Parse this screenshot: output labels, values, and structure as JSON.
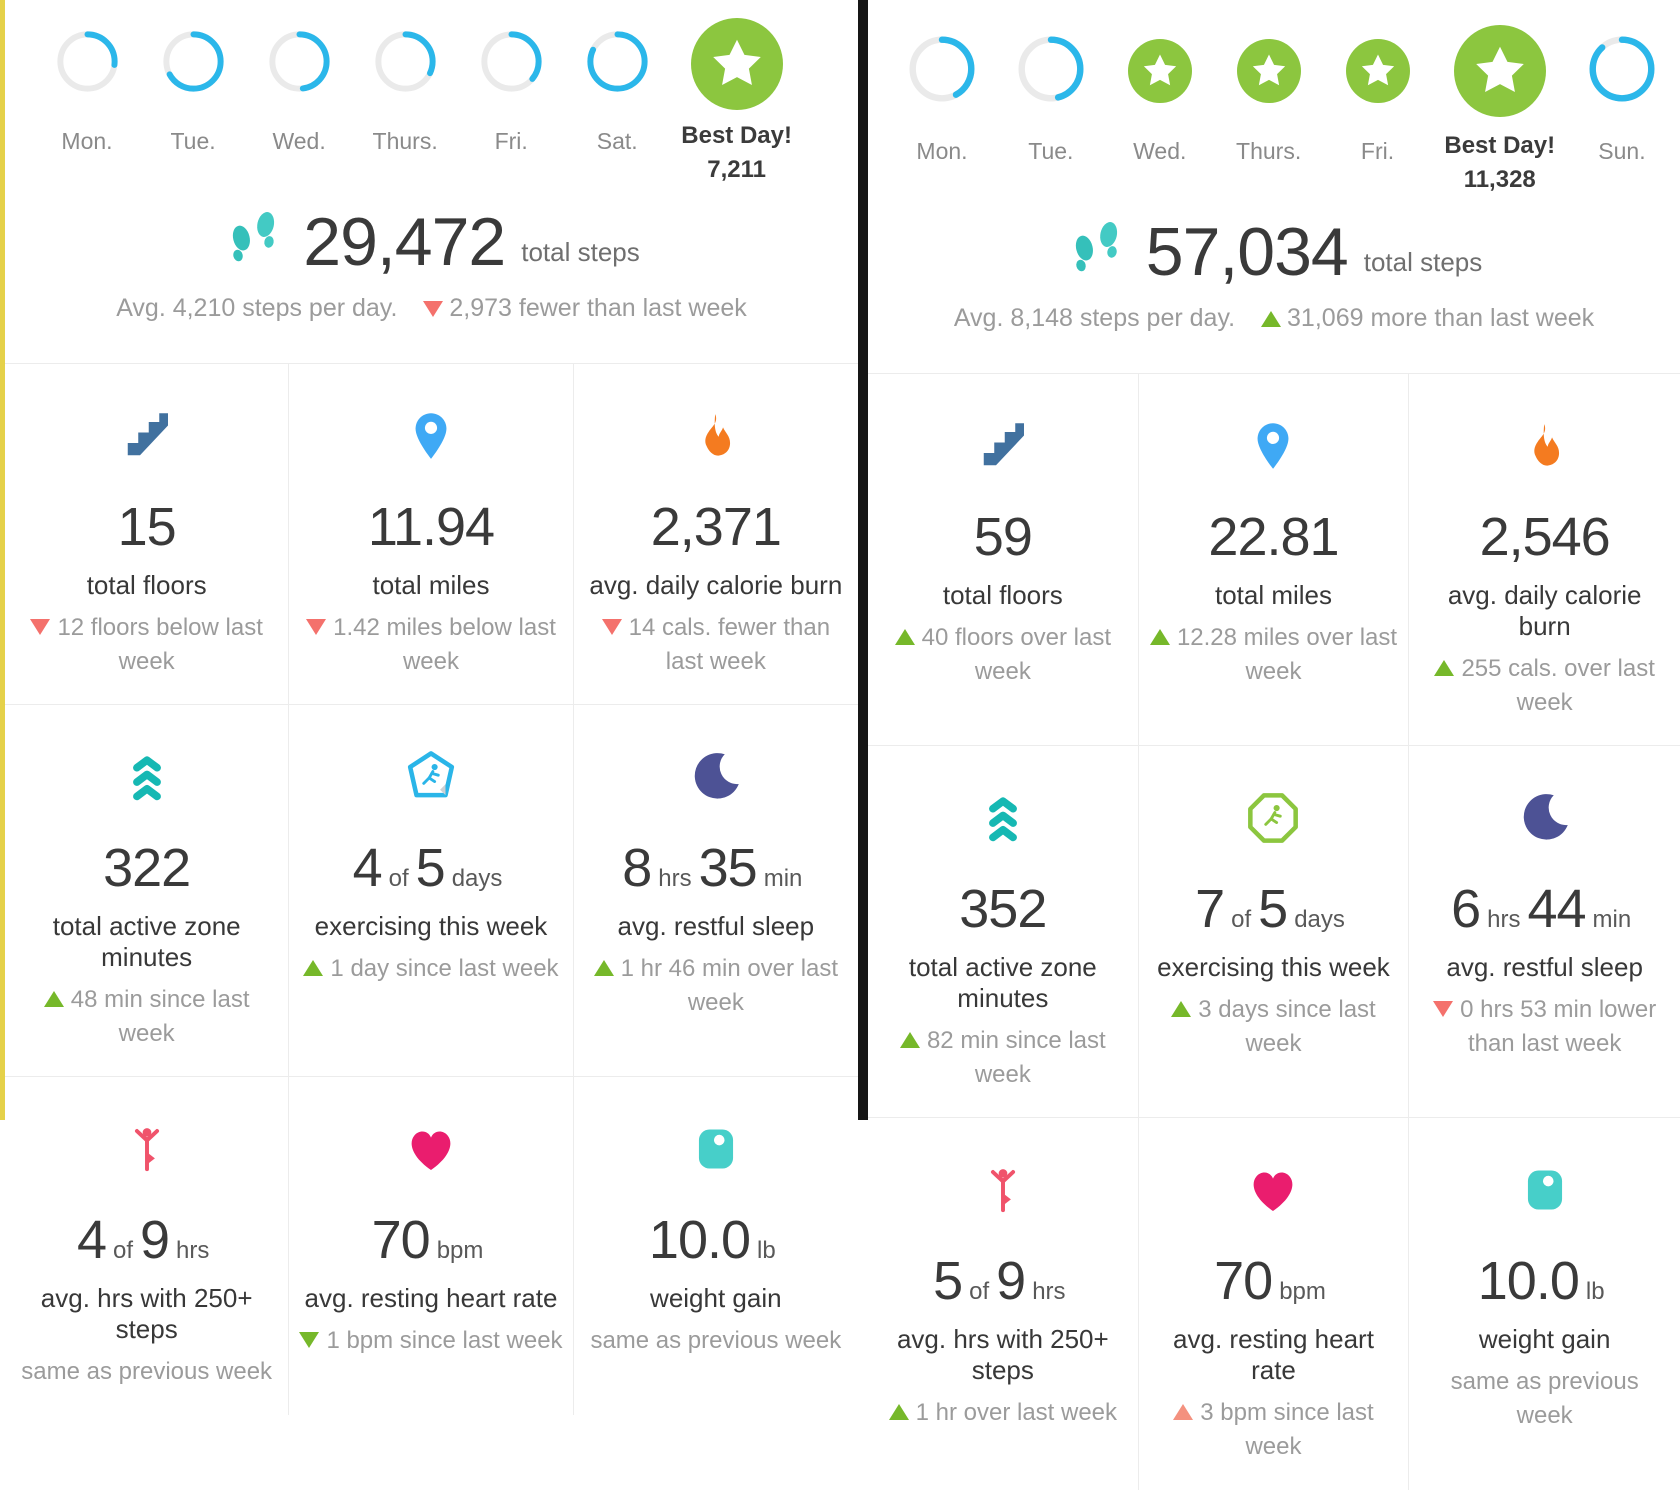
{
  "colors": {
    "green": "#76b82a",
    "red": "#f4716c",
    "salmon": "#f4917f",
    "ring_blue": "#2bb7ea",
    "star_green": "#8cc63f",
    "divider_black": "#161616",
    "edge_yellow": "#e5d149"
  },
  "left_panel": {
    "days": [
      {
        "label": "Mon.",
        "ring": 0.27,
        "size": "sm"
      },
      {
        "label": "Tue.",
        "ring": 0.67,
        "size": "sm"
      },
      {
        "label": "Wed.",
        "ring": 0.48,
        "size": "sm"
      },
      {
        "label": "Thurs.",
        "ring": 0.32,
        "size": "sm"
      },
      {
        "label": "Fri.",
        "ring": 0.36,
        "size": "sm"
      },
      {
        "label": "Sat.",
        "ring": 0.82,
        "size": "sm"
      },
      {
        "best_day": true,
        "star": "big",
        "title": "Best Day!",
        "value": "7,211"
      }
    ],
    "steps": {
      "total": "29,472",
      "unit": "total steps",
      "avg": "Avg. 4,210 steps per day.",
      "change": {
        "dir": "down",
        "color": "red",
        "text": "2,973 fewer than last week"
      }
    },
    "cards": [
      {
        "icon": "stairs-icon",
        "value": [
          {
            "t": "15"
          }
        ],
        "label": "total floors",
        "change": {
          "dir": "down",
          "color": "red",
          "text": "12 floors below last week"
        }
      },
      {
        "icon": "location-pin-icon",
        "value": [
          {
            "t": "11.94"
          }
        ],
        "label": "total miles",
        "change": {
          "dir": "down",
          "color": "red",
          "text": "1.42 miles below last week"
        }
      },
      {
        "icon": "flame-icon",
        "value": [
          {
            "t": "2,371"
          }
        ],
        "label": "avg. daily calorie burn",
        "change": {
          "dir": "down",
          "color": "red",
          "text": "14 cals. fewer than last week"
        }
      },
      {
        "icon": "active-zone-chevrons-icon",
        "value": [
          {
            "t": "322"
          }
        ],
        "label": "total active zone minutes",
        "change": {
          "dir": "up",
          "color": "green",
          "text": "48 min since last week"
        }
      },
      {
        "icon": "exercise-shield-icon",
        "value": [
          {
            "t": "4"
          },
          {
            "t": "of",
            "small": true
          },
          {
            "t": "5"
          },
          {
            "t": "days",
            "small": true
          }
        ],
        "label": "exercising this week",
        "change": {
          "dir": "up",
          "color": "green",
          "text": "1 day since last week"
        }
      },
      {
        "icon": "moon-icon",
        "value": [
          {
            "t": "8"
          },
          {
            "t": "hrs",
            "small": true
          },
          {
            "t": "35"
          },
          {
            "t": "min",
            "small": true
          }
        ],
        "label": "avg. restful sleep",
        "change": {
          "dir": "up",
          "color": "green",
          "text": "1 hr 46 min over last week"
        }
      },
      {
        "icon": "person-icon",
        "value": [
          {
            "t": "4"
          },
          {
            "t": "of",
            "small": true
          },
          {
            "t": "9"
          },
          {
            "t": "hrs",
            "small": true
          }
        ],
        "label": "avg. hrs with 250+ steps",
        "change": {
          "text": "same as previous week"
        }
      },
      {
        "icon": "heart-icon",
        "value": [
          {
            "t": "70"
          },
          {
            "t": "bpm",
            "small": true
          }
        ],
        "label": "avg. resting heart rate",
        "change": {
          "dir": "down",
          "color": "green",
          "text": "1 bpm since last week"
        }
      },
      {
        "icon": "scale-icon",
        "value": [
          {
            "t": "10.0"
          },
          {
            "t": "lb",
            "small": true
          }
        ],
        "label": "weight gain",
        "change": {
          "text": "same as previous week"
        }
      }
    ]
  },
  "right_panel": {
    "days": [
      {
        "label": "Mon.",
        "ring": 0.42,
        "size": "md"
      },
      {
        "label": "Tue.",
        "ring": 0.46,
        "size": "md"
      },
      {
        "label": "Wed.",
        "star": "sm"
      },
      {
        "label": "Thurs.",
        "star": "sm"
      },
      {
        "label": "Fri.",
        "star": "sm"
      },
      {
        "best_day": true,
        "star": "big",
        "title": "Best Day!",
        "value": "11,328"
      },
      {
        "label": "Sun.",
        "ring": 0.88,
        "size": "md"
      }
    ],
    "steps": {
      "total": "57,034",
      "unit": "total steps",
      "avg": "Avg. 8,148 steps per day.",
      "change": {
        "dir": "up",
        "color": "green",
        "text": "31,069 more than last week"
      }
    },
    "cards": [
      {
        "icon": "stairs-icon",
        "value": [
          {
            "t": "59"
          }
        ],
        "label": "total floors",
        "change": {
          "dir": "up",
          "color": "green",
          "text": "40 floors over last week"
        }
      },
      {
        "icon": "location-pin-icon",
        "value": [
          {
            "t": "22.81"
          }
        ],
        "label": "total miles",
        "change": {
          "dir": "up",
          "color": "green",
          "text": "12.28 miles over last week"
        }
      },
      {
        "icon": "flame-icon",
        "value": [
          {
            "t": "2,546"
          }
        ],
        "label": "avg. daily calorie burn",
        "change": {
          "dir": "up",
          "color": "green",
          "text": "255 cals. over last week"
        }
      },
      {
        "icon": "active-zone-chevrons-icon",
        "value": [
          {
            "t": "352"
          }
        ],
        "label": "total active zone minutes",
        "change": {
          "dir": "up",
          "color": "green",
          "text": "82 min since last week"
        }
      },
      {
        "icon": "exercise-octagon-icon",
        "value": [
          {
            "t": "7"
          },
          {
            "t": "of",
            "small": true
          },
          {
            "t": "5"
          },
          {
            "t": "days",
            "small": true
          }
        ],
        "label": "exercising this week",
        "change": {
          "dir": "up",
          "color": "green",
          "text": "3 days since last week"
        }
      },
      {
        "icon": "moon-icon",
        "value": [
          {
            "t": "6"
          },
          {
            "t": "hrs",
            "small": true
          },
          {
            "t": "44"
          },
          {
            "t": "min",
            "small": true
          }
        ],
        "label": "avg. restful sleep",
        "change": {
          "dir": "down",
          "color": "red",
          "text": "0 hrs 53 min lower than last week"
        }
      },
      {
        "icon": "person-icon",
        "value": [
          {
            "t": "5"
          },
          {
            "t": "of",
            "small": true
          },
          {
            "t": "9"
          },
          {
            "t": "hrs",
            "small": true
          }
        ],
        "label": "avg. hrs with 250+ steps",
        "change": {
          "dir": "up",
          "color": "green",
          "text": "1 hr over last week"
        }
      },
      {
        "icon": "heart-icon",
        "value": [
          {
            "t": "70"
          },
          {
            "t": "bpm",
            "small": true
          }
        ],
        "label": "avg. resting heart rate",
        "change": {
          "dir": "up",
          "color": "salmon",
          "text": "3 bpm since last week"
        }
      },
      {
        "icon": "scale-icon",
        "value": [
          {
            "t": "10.0"
          },
          {
            "t": "lb",
            "small": true
          }
        ],
        "label": "weight gain",
        "change": {
          "text": "same as previous week"
        }
      }
    ]
  }
}
